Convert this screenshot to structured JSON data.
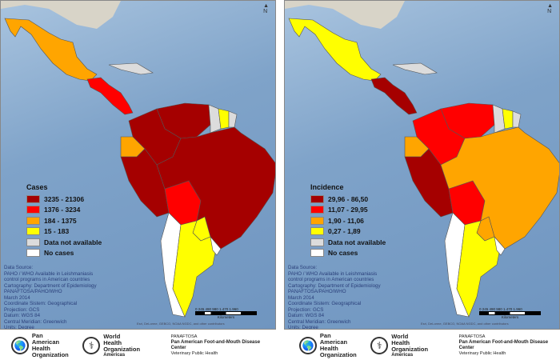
{
  "colors": {
    "dark_red": "#a50000",
    "red": "#ff0000",
    "orange": "#ffa500",
    "yellow": "#ffff00",
    "gray": "#dcdcdc",
    "white": "#ffffff"
  },
  "maps": [
    {
      "legend_title": "Cases",
      "legend": [
        {
          "label": "3235 - 21306",
          "color": "#a50000"
        },
        {
          "label": "1376 - 3234",
          "color": "#ff0000"
        },
        {
          "label": "184 - 1375",
          "color": "#ffa500"
        },
        {
          "label": "15 - 183",
          "color": "#ffff00"
        },
        {
          "label": "Data not available",
          "color": "#dcdcdc"
        },
        {
          "label": "No cases",
          "color": "#ffffff"
        }
      ],
      "country_fills": {
        "mexico": "#ffa500",
        "central-america": "#ff0000",
        "caribbean": "#dcdcdc",
        "venezuela": "#a50000",
        "colombia": "#a50000",
        "guyana": "#dcdcdc",
        "suriname": "#ffff00",
        "french-guiana": "#dcdcdc",
        "ecuador": "#ffa500",
        "peru": "#a50000",
        "bolivia": "#ff0000",
        "brazil": "#a50000",
        "paraguay": "#ffff00",
        "chile": "#ffffff",
        "argentina": "#ffff00",
        "uruguay": "#ffffff"
      }
    },
    {
      "legend_title": "Incidence",
      "legend": [
        {
          "label": "29,96 - 86,50",
          "color": "#a50000"
        },
        {
          "label": "11,07 - 29,95",
          "color": "#ff0000"
        },
        {
          "label": "1,90 - 11,06",
          "color": "#ffa500"
        },
        {
          "label": "0,27 - 1,89",
          "color": "#ffff00"
        },
        {
          "label": "Data not available",
          "color": "#dcdcdc"
        },
        {
          "label": "No cases",
          "color": "#ffffff"
        }
      ],
      "country_fills": {
        "mexico": "#ffff00",
        "central-america": "#a50000",
        "caribbean": "#dcdcdc",
        "venezuela": "#ff0000",
        "colombia": "#ff0000",
        "guyana": "#dcdcdc",
        "suriname": "#ffff00",
        "french-guiana": "#dcdcdc",
        "ecuador": "#ffa500",
        "peru": "#a50000",
        "bolivia": "#ff0000",
        "brazil": "#ffa500",
        "paraguay": "#ffa500",
        "chile": "#ffffff",
        "argentina": "#ffff00",
        "uruguay": "#ffffff"
      }
    }
  ],
  "source_lines": [
    "Data Source:",
    "PAHO / WHO Available in Leishmaniasis",
    "control programs in American countries",
    "Cartography: Department of Epidemiology",
    "PANAFTOSA/PAHO/WHO",
    "March 2014",
    "Coordinate Sistem: Geographical",
    "Projection: GCS",
    "Datum: WGS 84",
    "Central Meridian: Greenwich",
    "Units: Degree"
  ],
  "north_label": "N",
  "scale": {
    "ticks": "0  245 490    980    1.470   1.960",
    "unit": "Kilometers"
  },
  "credits": "Esri, DeLorme, GEBCO, NOAA NGDC, and other contributors",
  "footer": {
    "paho": "Pan American\nHealth\nOrganization",
    "who": "World\nHealth Organization",
    "who_sub": "Americas",
    "panaftosa": "PANAFTOSA",
    "panaftosa_name": "Pan American Foot-and-Mouth Disease Center",
    "panaftosa_sub": "Veterinary Public Health"
  }
}
